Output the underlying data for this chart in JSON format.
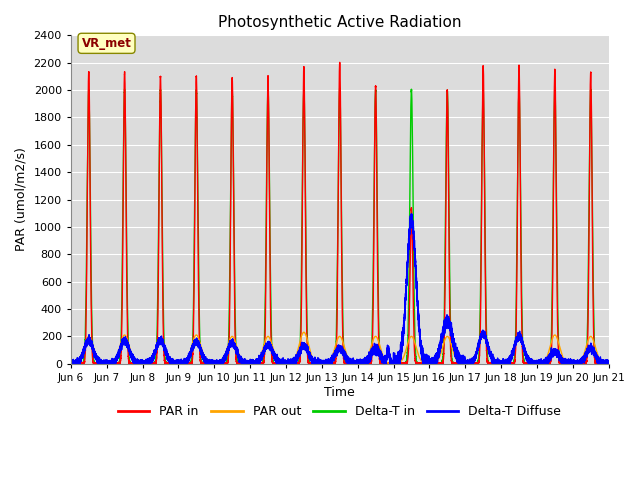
{
  "title": "Photosynthetic Active Radiation",
  "ylabel": "PAR (umol/m2/s)",
  "xlabel": "Time",
  "ylim": [
    0,
    2400
  ],
  "yticks": [
    0,
    200,
    400,
    600,
    800,
    1000,
    1200,
    1400,
    1600,
    1800,
    2000,
    2200,
    2400
  ],
  "xtick_labels": [
    "Jun 6",
    "Jun 7",
    "Jun 8",
    "Jun 9",
    "Jun 10",
    "Jun 11",
    "Jun 12",
    "Jun 13",
    "Jun 14",
    "Jun 15",
    "Jun 16",
    "Jun 17",
    "Jun 18",
    "Jun 19",
    "Jun 20",
    "Jun 21"
  ],
  "annotation_text": "VR_met",
  "annotation_color": "#8B0000",
  "annotation_bg": "#FFFFC0",
  "colors": {
    "PAR in": "#FF0000",
    "PAR out": "#FFA500",
    "Delta-T in": "#00CC00",
    "Delta-T Diffuse": "#0000FF"
  },
  "background_color": "#DCDCDC",
  "grid_color": "#FFFFFF",
  "num_days": 15,
  "peaks_par_in": [
    2130,
    2130,
    2100,
    2100,
    2090,
    2100,
    2170,
    2200,
    2030,
    1140,
    2000,
    2180,
    2180,
    2150,
    2130
  ],
  "peaks_par_out": [
    200,
    210,
    160,
    210,
    200,
    200,
    230,
    200,
    200,
    200,
    200,
    200,
    210,
    210,
    200
  ],
  "peaks_delta_in": [
    2000,
    2000,
    2000,
    2000,
    2000,
    2000,
    2000,
    2010,
    2000,
    2000,
    2000,
    2000,
    2000,
    2010,
    2000
  ],
  "peaks_delta_diff": [
    170,
    170,
    170,
    160,
    150,
    140,
    130,
    110,
    110,
    1050,
    310,
    220,
    200,
    90,
    110
  ]
}
